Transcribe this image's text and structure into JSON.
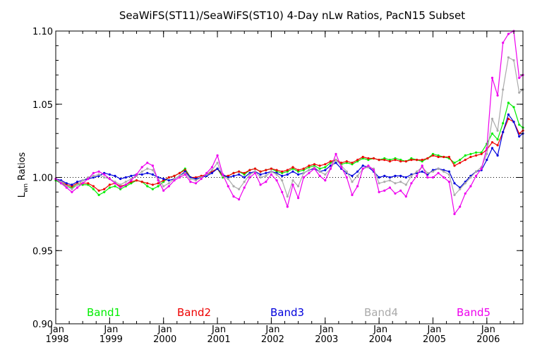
{
  "chart_data": {
    "type": "line",
    "title": "SeaWiFS(ST11)/SeaWiFS(ST10) 4-Day nLw Ratios, PacN15 Subset",
    "ylabel_main": "L",
    "ylabel_sub": "wn",
    "ylabel_rest": " Ratios",
    "xlabel": "",
    "xlim": [
      1998.0,
      2006.67
    ],
    "ylim": [
      0.9,
      1.1
    ],
    "yticks": [
      "0.90",
      "0.95",
      "1.00",
      "1.05",
      "1.10"
    ],
    "ytick_values": [
      0.9,
      0.95,
      1.0,
      1.05,
      1.1
    ],
    "xticks": [
      {
        "month": "Jan",
        "year": "1998",
        "value": 1998
      },
      {
        "month": "Jan",
        "year": "1999",
        "value": 1999
      },
      {
        "month": "Jan",
        "year": "2000",
        "value": 2000
      },
      {
        "month": "Jan",
        "year": "2001",
        "value": 2001
      },
      {
        "month": "Jan",
        "year": "2002",
        "value": 2002
      },
      {
        "month": "Jan",
        "year": "2003",
        "value": 2003
      },
      {
        "month": "Jan",
        "year": "2004",
        "value": 2004
      },
      {
        "month": "Jan",
        "year": "2005",
        "value": 2005
      },
      {
        "month": "Jan",
        "year": "2006",
        "value": 2006
      }
    ],
    "reference_line": 1.0,
    "legend_placement": "bottom, inside plot",
    "x": [
      1998.0,
      1998.1,
      1998.2,
      1998.3,
      1998.4,
      1998.5,
      1998.6,
      1998.7,
      1998.8,
      1998.9,
      1999.0,
      1999.1,
      1999.2,
      1999.3,
      1999.4,
      1999.5,
      1999.6,
      1999.7,
      1999.8,
      1999.9,
      2000.0,
      2000.1,
      2000.2,
      2000.3,
      2000.4,
      2000.5,
      2000.6,
      2000.7,
      2000.8,
      2000.9,
      2001.0,
      2001.1,
      2001.2,
      2001.3,
      2001.4,
      2001.5,
      2001.6,
      2001.7,
      2001.8,
      2001.9,
      2002.0,
      2002.1,
      2002.2,
      2002.3,
      2002.4,
      2002.5,
      2002.6,
      2002.7,
      2002.8,
      2002.9,
      2003.0,
      2003.1,
      2003.2,
      2003.3,
      2003.4,
      2003.5,
      2003.6,
      2003.7,
      2003.8,
      2003.9,
      2004.0,
      2004.1,
      2004.2,
      2004.3,
      2004.4,
      2004.5,
      2004.6,
      2004.7,
      2004.8,
      2004.9,
      2005.0,
      2005.1,
      2005.2,
      2005.3,
      2005.4,
      2005.5,
      2005.6,
      2005.7,
      2005.8,
      2005.9,
      2006.0,
      2006.1,
      2006.2,
      2006.3,
      2006.4,
      2006.5,
      2006.6,
      2006.67
    ],
    "series": [
      {
        "name": "Band1",
        "color": "#00ee00",
        "values": [
          0.998,
          0.996,
          0.994,
          0.993,
          0.995,
          0.995,
          0.995,
          0.992,
          0.988,
          0.99,
          0.993,
          0.994,
          0.992,
          0.994,
          0.996,
          0.998,
          0.997,
          0.994,
          0.992,
          0.994,
          0.997,
          1.0,
          1.001,
          1.003,
          1.006,
          1.0,
          0.999,
          1.0,
          1.002,
          1.004,
          1.006,
          1.0,
          1.001,
          1.003,
          1.004,
          1.002,
          1.005,
          1.006,
          1.004,
          1.005,
          1.006,
          1.004,
          1.003,
          1.004,
          1.006,
          1.004,
          1.005,
          1.007,
          1.008,
          1.006,
          1.007,
          1.01,
          1.012,
          1.009,
          1.01,
          1.009,
          1.011,
          1.013,
          1.012,
          1.013,
          1.012,
          1.013,
          1.012,
          1.013,
          1.012,
          1.011,
          1.013,
          1.012,
          1.011,
          1.013,
          1.016,
          1.015,
          1.014,
          1.013,
          1.01,
          1.012,
          1.015,
          1.016,
          1.017,
          1.017,
          1.023,
          1.03,
          1.026,
          1.037,
          1.051,
          1.048,
          1.036,
          1.034
        ]
      },
      {
        "name": "Band2",
        "color": "#ee0000",
        "values": [
          0.999,
          0.997,
          0.995,
          0.994,
          0.996,
          0.996,
          0.996,
          0.994,
          0.991,
          0.992,
          0.995,
          0.996,
          0.994,
          0.995,
          0.997,
          0.998,
          0.997,
          0.996,
          0.995,
          0.996,
          0.998,
          1.0,
          1.001,
          1.003,
          1.005,
          1.0,
          1.0,
          1.001,
          1.002,
          1.004,
          1.006,
          1.001,
          1.001,
          1.003,
          1.004,
          1.003,
          1.005,
          1.006,
          1.004,
          1.005,
          1.006,
          1.005,
          1.004,
          1.005,
          1.007,
          1.005,
          1.006,
          1.008,
          1.009,
          1.008,
          1.009,
          1.011,
          1.012,
          1.01,
          1.011,
          1.01,
          1.012,
          1.014,
          1.013,
          1.013,
          1.012,
          1.012,
          1.011,
          1.012,
          1.011,
          1.011,
          1.012,
          1.012,
          1.012,
          1.013,
          1.015,
          1.014,
          1.014,
          1.014,
          1.008,
          1.01,
          1.012,
          1.014,
          1.015,
          1.016,
          1.019,
          1.024,
          1.022,
          1.031,
          1.04,
          1.038,
          1.03,
          1.032
        ]
      },
      {
        "name": "Band3",
        "color": "#0000dd",
        "values": [
          0.999,
          0.998,
          0.996,
          0.995,
          0.997,
          0.998,
          0.999,
          1.0,
          1.001,
          1.003,
          1.002,
          1.001,
          0.999,
          1.0,
          1.001,
          1.002,
          1.002,
          1.003,
          1.002,
          1.0,
          0.999,
          0.998,
          0.999,
          1.001,
          1.004,
          1.0,
          0.999,
          1.0,
          1.001,
          1.003,
          1.006,
          1.002,
          1.0,
          1.001,
          1.002,
          1.0,
          1.003,
          1.004,
          1.002,
          1.003,
          1.004,
          1.003,
          1.001,
          1.002,
          1.004,
          1.002,
          1.003,
          1.005,
          1.006,
          1.004,
          1.005,
          1.008,
          1.01,
          1.006,
          1.003,
          1.001,
          1.004,
          1.008,
          1.007,
          1.004,
          1.0,
          1.001,
          1.0,
          1.001,
          1.001,
          1.0,
          1.002,
          1.003,
          1.004,
          1.002,
          1.005,
          1.006,
          1.005,
          1.004,
          0.996,
          0.993,
          0.997,
          1.001,
          1.004,
          1.005,
          1.012,
          1.02,
          1.015,
          1.031,
          1.043,
          1.038,
          1.028,
          1.03
        ]
      },
      {
        "name": "Band4",
        "color": "#aaaaaa",
        "values": [
          0.999,
          0.997,
          0.994,
          0.992,
          0.995,
          0.998,
          1.0,
          1.001,
          1.002,
          1.0,
          0.999,
          0.997,
          0.995,
          0.997,
          0.999,
          1.001,
          1.004,
          1.006,
          1.005,
          0.999,
          0.994,
          0.996,
          0.999,
          1.001,
          1.003,
          0.999,
          0.998,
          1.0,
          1.002,
          1.005,
          1.01,
          1.001,
          0.999,
          0.994,
          0.992,
          0.997,
          1.002,
          1.004,
          1.0,
          1.001,
          1.004,
          1.002,
          0.998,
          0.987,
          0.998,
          0.994,
          1.003,
          1.005,
          1.007,
          1.004,
          1.002,
          1.006,
          1.012,
          1.008,
          1.004,
          0.997,
          1.001,
          1.006,
          1.007,
          1.006,
          0.996,
          0.997,
          0.998,
          0.996,
          0.997,
          0.995,
          1.001,
          1.004,
          1.007,
          1.003,
          1.004,
          1.006,
          1.004,
          1.002,
          0.988,
          0.992,
          0.996,
          1.0,
          1.004,
          1.007,
          1.016,
          1.04,
          1.032,
          1.06,
          1.082,
          1.08,
          1.058,
          1.06
        ]
      },
      {
        "name": "Band5",
        "color": "#ee00ee",
        "values": [
          0.999,
          0.996,
          0.993,
          0.99,
          0.993,
          0.996,
          0.999,
          1.003,
          1.004,
          1.002,
          0.999,
          0.996,
          0.993,
          0.995,
          0.998,
          1.002,
          1.007,
          1.01,
          1.008,
          0.998,
          0.991,
          0.994,
          0.998,
          1.0,
          1.002,
          0.997,
          0.996,
          0.999,
          1.003,
          1.007,
          1.015,
          1.002,
          0.994,
          0.987,
          0.985,
          0.993,
          1.0,
          1.003,
          0.995,
          0.997,
          1.002,
          0.998,
          0.99,
          0.98,
          0.995,
          0.986,
          1.0,
          1.003,
          1.006,
          1.001,
          0.998,
          1.006,
          1.016,
          1.007,
          1.0,
          0.988,
          0.994,
          1.006,
          1.008,
          1.005,
          0.99,
          0.991,
          0.993,
          0.989,
          0.991,
          0.987,
          0.996,
          1.001,
          1.008,
          1.0,
          1.0,
          1.003,
          1.0,
          0.997,
          0.975,
          0.98,
          0.989,
          0.994,
          1.001,
          1.006,
          1.02,
          1.068,
          1.056,
          1.092,
          1.098,
          1.1,
          1.068,
          1.07
        ]
      }
    ]
  }
}
